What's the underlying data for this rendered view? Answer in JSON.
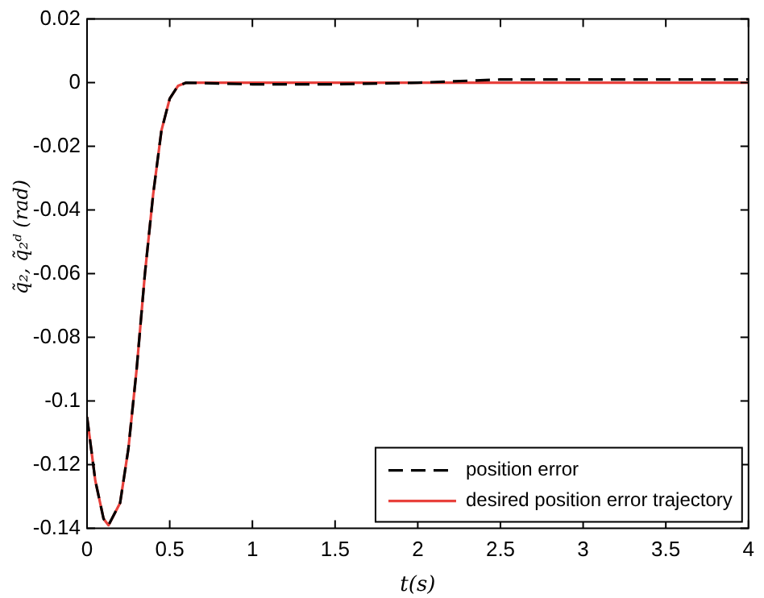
{
  "chart_data": {
    "type": "line",
    "xlabel": "t(s)",
    "ylabel": "q̃₂, q̃₂ᵈ (rad)",
    "xlim": [
      0,
      4
    ],
    "xticks": [
      0,
      0.5,
      1,
      1.5,
      2,
      2.5,
      3,
      3.5,
      4
    ],
    "ylim": [
      -0.14,
      0.02
    ],
    "yticks": [
      -0.14,
      -0.12,
      -0.1,
      -0.08,
      -0.06,
      -0.04,
      -0.02,
      0,
      0.02
    ],
    "grid": false,
    "legend": "bottom right",
    "marker": "none",
    "series": [
      {
        "name": "position error",
        "color": "#000000",
        "line_style": "dashed",
        "x": [
          0,
          0.05,
          0.1,
          0.13,
          0.2,
          0.25,
          0.3,
          0.35,
          0.4,
          0.45,
          0.5,
          0.55,
          0.6,
          1,
          1.5,
          2,
          2.5,
          3,
          3.5,
          4
        ],
        "values": [
          -0.105,
          -0.125,
          -0.137,
          -0.139,
          -0.132,
          -0.115,
          -0.09,
          -0.06,
          -0.035,
          -0.015,
          -0.005,
          -0.001,
          0,
          -0.0005,
          -0.0005,
          0,
          0.001,
          0.001,
          0.001,
          0.001
        ]
      },
      {
        "name": "desired position error trajectory",
        "color": "#e8413c",
        "line_style": "solid",
        "x": [
          0,
          0.05,
          0.1,
          0.13,
          0.2,
          0.25,
          0.3,
          0.35,
          0.4,
          0.45,
          0.5,
          0.55,
          0.6,
          4
        ],
        "values": [
          -0.105,
          -0.125,
          -0.137,
          -0.139,
          -0.132,
          -0.115,
          -0.09,
          -0.06,
          -0.035,
          -0.015,
          -0.005,
          -0.001,
          0,
          0
        ]
      }
    ]
  }
}
